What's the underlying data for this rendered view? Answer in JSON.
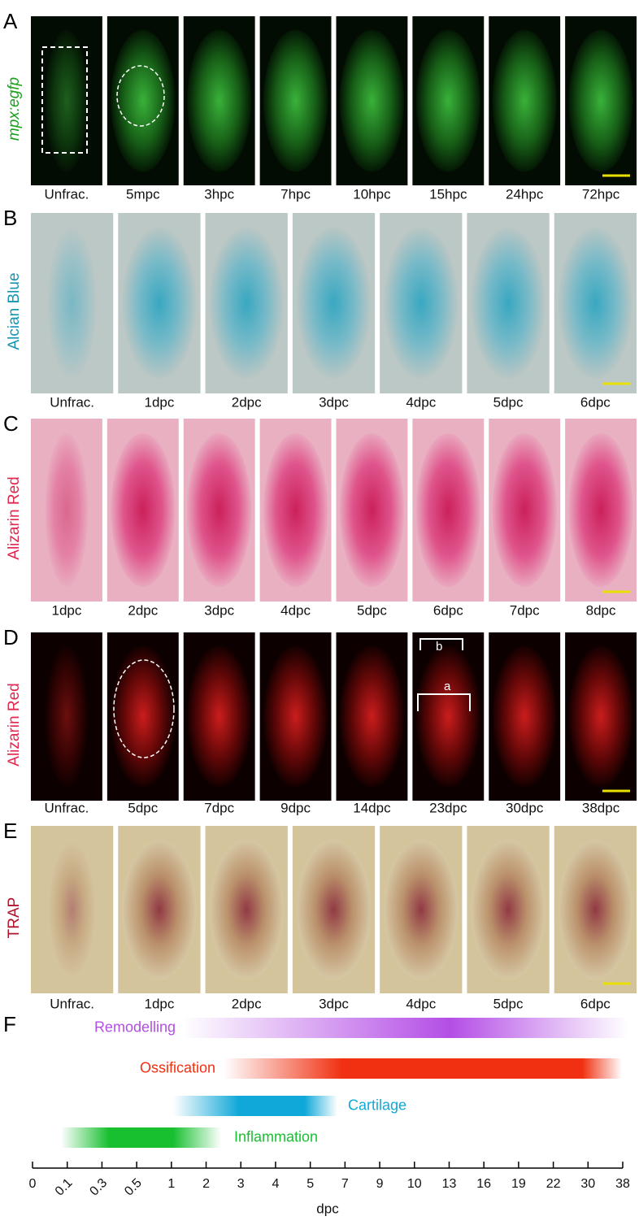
{
  "panels": [
    {
      "letter": "A",
      "stain": "mpx:egfp",
      "labels": [
        "Unfrac.",
        "5mpc",
        "3hpc",
        "7hpc",
        "10hpc",
        "15hpc",
        "24hpc",
        "72hpc"
      ]
    },
    {
      "letter": "B",
      "stain": "Alcian Blue",
      "labels": [
        "Unfrac.",
        "1dpc",
        "2dpc",
        "3dpc",
        "4dpc",
        "5dpc",
        "6dpc"
      ]
    },
    {
      "letter": "C",
      "stain": "Alizarin Red",
      "labels": [
        "1dpc",
        "2dpc",
        "3dpc",
        "4dpc",
        "5dpc",
        "6dpc",
        "7dpc",
        "8dpc"
      ]
    },
    {
      "letter": "D",
      "stain": "Alizarin Red",
      "labels": [
        "Unfrac.",
        "5dpc",
        "7dpc",
        "9dpc",
        "14dpc",
        "23dpc",
        "30dpc",
        "38dpc"
      ],
      "annotations": [
        "b",
        "a"
      ]
    },
    {
      "letter": "E",
      "stain": "TRAP",
      "labels": [
        "Unfrac.",
        "1dpc",
        "2dpc",
        "3dpc",
        "4dpc",
        "5dpc",
        "6dpc"
      ]
    }
  ],
  "timeline": {
    "letter": "F",
    "bars": [
      {
        "label": "Remodelling"
      },
      {
        "label": "Ossification"
      },
      {
        "label": "Cartilage"
      },
      {
        "label": "Inflammation"
      }
    ],
    "ticks": [
      "0",
      "0.1",
      "0.3",
      "0.5",
      "1",
      "2",
      "3",
      "4",
      "5",
      "7",
      "9",
      "10",
      "13",
      "16",
      "19",
      "22",
      "30",
      "38"
    ],
    "axis_label": "dpc"
  }
}
